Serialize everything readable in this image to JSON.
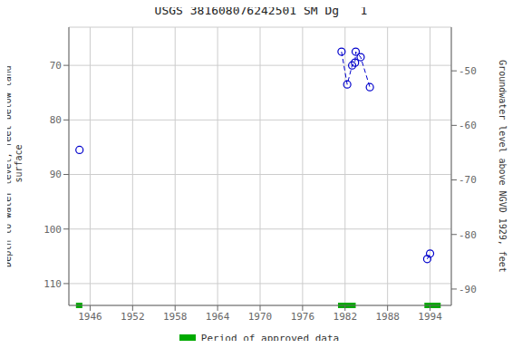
{
  "chart_data": {
    "type": "scatter",
    "title": "USGS 381608076242501 SM Dg   1",
    "y_label": "Depth to water level, feet below land\n surface",
    "y2_label": "Groundwater level above NGVD 1929, feet",
    "xlim": [
      1943,
      1997
    ],
    "xticks": [
      1946,
      1952,
      1958,
      1964,
      1970,
      1976,
      1982,
      1988,
      1994
    ],
    "ylim": [
      114,
      63
    ],
    "yticks": [
      70,
      80,
      90,
      100,
      110
    ],
    "y2lim": [
      -93,
      -42
    ],
    "y2ticks": [
      -50,
      -60,
      -70,
      -80,
      -90
    ],
    "grid": true,
    "legend": "bottom",
    "series": [
      {
        "color": "#0000cc",
        "marker": "circle",
        "line_style": "dashed",
        "x": [
          1944.5
        ],
        "values": [
          85.5
        ]
      },
      {
        "color": "#0000cc",
        "marker": "circle",
        "line_style": "dashed",
        "x": [
          1981.5,
          1982.3,
          1983.0,
          1983.4,
          1983.5,
          1984.2,
          1985.5
        ],
        "values": [
          67.5,
          73.5,
          70.0,
          69.5,
          67.5,
          68.5,
          74.0
        ]
      },
      {
        "color": "#0000cc",
        "marker": "circle",
        "line_style": "dashed",
        "x": [
          1993.6,
          1994.0
        ],
        "values": [
          105.5,
          104.5
        ]
      }
    ],
    "approved_periods": {
      "name": "Period of approved data",
      "color": "#00aa00",
      "periods": [
        {
          "start": 1944.0,
          "end": 1944.9
        },
        {
          "start": 1981.0,
          "end": 1983.5
        },
        {
          "start": 1993.2,
          "end": 1995.5
        }
      ]
    }
  }
}
